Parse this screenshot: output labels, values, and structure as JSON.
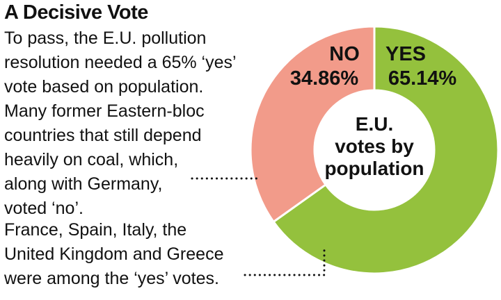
{
  "title": "A Decisive Vote",
  "paragraphs": {
    "p1": [
      "To pass, the E.U. pollution",
      "resolution needed a 65% ‘yes’",
      "vote based on population."
    ],
    "p2": [
      "Many former Eastern-bloc",
      "countries that still depend",
      "heavily on coal, which,",
      "along with Germany,",
      "voted ‘no’."
    ],
    "p3": [
      "France, Spain, Italy, the",
      "United Kingdom and Greece",
      "were among the ‘yes’ votes."
    ]
  },
  "chart_data": {
    "type": "pie",
    "categories": [
      "YES",
      "NO"
    ],
    "values": [
      65.14,
      34.86
    ],
    "value_labels": [
      "65.14%",
      "34.86%"
    ],
    "center_label": [
      "E.U.",
      "votes by",
      "population"
    ],
    "colors": {
      "YES": "#94c13d",
      "NO": "#f29b8a"
    }
  }
}
